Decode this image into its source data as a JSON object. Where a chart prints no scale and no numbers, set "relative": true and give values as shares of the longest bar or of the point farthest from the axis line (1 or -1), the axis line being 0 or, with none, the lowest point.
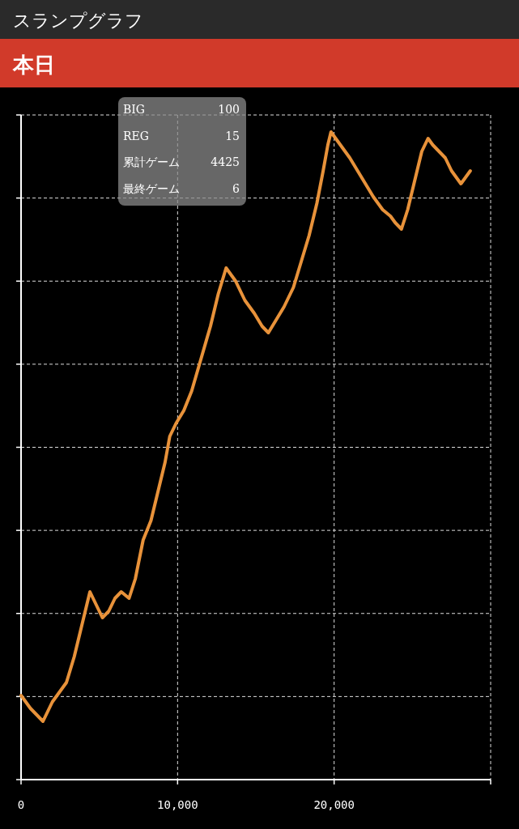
{
  "chart_data": {
    "type": "line",
    "title": "スランプグラフ",
    "subtitle": "本日",
    "relative": true,
    "grid": true,
    "marker": "none",
    "line_style": "solid",
    "xlim": [
      0,
      30000
    ],
    "xticks": [
      {
        "value": 0,
        "label": "0"
      },
      {
        "value": 10000,
        "label": "10,000"
      },
      {
        "value": 20000,
        "label": "20,000"
      },
      {
        "value": 30000,
        "label": null
      }
    ],
    "annotations": [
      "BIG",
      "100",
      "REG",
      "15",
      "累計ゲーム",
      "4425",
      "最終ゲーム",
      "6"
    ],
    "series": [
      {
        "color": "#e8923a",
        "x": [
          0,
          600,
          1400,
          2000,
          2900,
          3400,
          3800,
          4400,
          5200,
          5600,
          6000,
          6400,
          6900,
          7300,
          7800,
          8300,
          8800,
          9200,
          9500,
          9900,
          10400,
          10900,
          11500,
          12100,
          12600,
          13100,
          13700,
          14300,
          14900,
          15400,
          15800,
          16300,
          16800,
          17400,
          17900,
          18400,
          18900,
          19300,
          19600,
          19800,
          20400,
          21000,
          21500,
          22000,
          22500,
          23100,
          23600,
          23900,
          24300,
          24700,
          25100,
          25600,
          26000,
          26300,
          26700,
          27100,
          27500,
          28100,
          28400,
          28700
        ],
        "values": [
          0.13,
          0.11,
          0.09,
          0.12,
          0.15,
          0.19,
          0.23,
          0.29,
          0.25,
          0.26,
          0.28,
          0.29,
          0.28,
          0.31,
          0.37,
          0.4,
          0.45,
          0.49,
          0.53,
          0.55,
          0.57,
          0.6,
          0.65,
          0.7,
          0.75,
          0.79,
          0.77,
          0.74,
          0.72,
          0.7,
          0.69,
          0.71,
          0.73,
          0.76,
          0.8,
          0.84,
          0.89,
          0.94,
          0.98,
          1,
          0.98,
          0.96,
          0.94,
          0.92,
          0.9,
          0.88,
          0.87,
          0.86,
          0.85,
          0.88,
          0.92,
          0.97,
          0.99,
          0.98,
          0.97,
          0.96,
          0.94,
          0.92,
          0.93,
          0.94
        ]
      }
    ]
  }
}
